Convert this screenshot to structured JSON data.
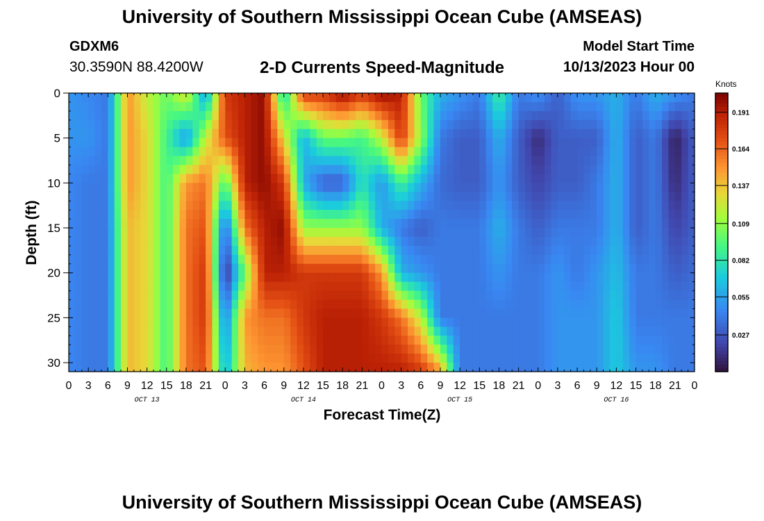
{
  "header": {
    "title": "University of Southern Mississippi Ocean Cube (AMSEAS)",
    "station_name": "GDXM6",
    "coordinates": "30.3590N  88.4200W",
    "chart_subtitle": "2-D Currents Speed-Magnitude",
    "model_start_label": "Model Start Time",
    "model_start_value": "10/13/2023 Hour 00"
  },
  "footer": {
    "title": "University of Southern Mississippi Ocean Cube (AMSEAS)"
  },
  "chart_data": {
    "type": "heatmap",
    "title": "2-D Currents Speed-Magnitude",
    "xlabel": "Forecast Time(Z)",
    "ylabel": "Depth (ft)",
    "x_range_hours": [
      0,
      96
    ],
    "ylim": [
      0,
      31
    ],
    "y_inverted": true,
    "x_ticks": [
      "0",
      "3",
      "6",
      "9",
      "12",
      "15",
      "18",
      "21",
      "0",
      "3",
      "6",
      "9",
      "12",
      "15",
      "18",
      "21",
      "0",
      "3",
      "6",
      "9",
      "12",
      "15",
      "18",
      "21",
      "0",
      "3",
      "6",
      "9",
      "12",
      "15",
      "18",
      "21",
      "0"
    ],
    "x_tick_hours": [
      0,
      3,
      6,
      9,
      12,
      15,
      18,
      21,
      24,
      27,
      30,
      33,
      36,
      39,
      42,
      45,
      48,
      51,
      54,
      57,
      60,
      63,
      66,
      69,
      72,
      75,
      78,
      81,
      84,
      87,
      90,
      93,
      96
    ],
    "day_labels": [
      {
        "hour": 12,
        "label": "OCT 13"
      },
      {
        "hour": 36,
        "label": "OCT 14"
      },
      {
        "hour": 60,
        "label": "OCT 15"
      },
      {
        "hour": 84,
        "label": "OCT 16"
      }
    ],
    "y_ticks": [
      "0",
      "5",
      "10",
      "15",
      "20",
      "25",
      "30"
    ],
    "y_tick_values": [
      0,
      5,
      10,
      15,
      20,
      25,
      30
    ],
    "colorbar": {
      "unit": "Knots",
      "range": [
        0.0,
        0.205
      ],
      "ticks": [
        "0.191",
        "0.164",
        "0.137",
        "0.109",
        "0.082",
        "0.055",
        "0.027"
      ],
      "tick_values": [
        0.191,
        0.164,
        0.137,
        0.109,
        0.082,
        0.055,
        0.027
      ]
    },
    "grid_hours": [
      0,
      3,
      6,
      9,
      12,
      15,
      18,
      21,
      24,
      27,
      30,
      33,
      36,
      39,
      42,
      45,
      48,
      51,
      54,
      57,
      60,
      63,
      66,
      69,
      72,
      75,
      78,
      81,
      84,
      87,
      90,
      93,
      96
    ],
    "grid_depths": [
      0,
      5,
      10,
      15,
      20,
      25,
      31
    ],
    "values": [
      [
        0.05,
        0.045,
        0.04,
        0.15,
        0.12,
        0.1,
        0.13,
        0.05,
        0.18,
        0.19,
        0.2,
        0.07,
        0.18,
        0.18,
        0.2,
        0.18,
        0.2,
        0.19,
        0.1,
        0.06,
        0.05,
        0.04,
        0.09,
        0.04,
        0.05,
        0.03,
        0.05,
        0.05,
        0.06,
        0.04,
        0.06,
        0.05,
        0.04
      ],
      [
        0.05,
        0.05,
        0.04,
        0.15,
        0.13,
        0.09,
        0.05,
        0.12,
        0.17,
        0.19,
        0.2,
        0.13,
        0.06,
        0.1,
        0.1,
        0.09,
        0.12,
        0.18,
        0.11,
        0.04,
        0.03,
        0.03,
        0.06,
        0.03,
        0.01,
        0.03,
        0.03,
        0.03,
        0.06,
        0.03,
        0.04,
        0.005,
        0.03
      ],
      [
        0.045,
        0.04,
        0.04,
        0.15,
        0.13,
        0.09,
        0.15,
        0.16,
        0.09,
        0.19,
        0.2,
        0.18,
        0.06,
        0.03,
        0.03,
        0.08,
        0.05,
        0.09,
        0.06,
        0.035,
        0.03,
        0.03,
        0.05,
        0.03,
        0.02,
        0.03,
        0.03,
        0.04,
        0.06,
        0.03,
        0.04,
        0.01,
        0.03
      ],
      [
        0.045,
        0.04,
        0.04,
        0.14,
        0.13,
        0.09,
        0.16,
        0.17,
        0.03,
        0.16,
        0.19,
        0.2,
        0.11,
        0.11,
        0.11,
        0.11,
        0.06,
        0.04,
        0.03,
        0.04,
        0.04,
        0.04,
        0.06,
        0.04,
        0.03,
        0.04,
        0.04,
        0.04,
        0.06,
        0.03,
        0.04,
        0.02,
        0.03
      ],
      [
        0.045,
        0.04,
        0.04,
        0.14,
        0.13,
        0.09,
        0.16,
        0.18,
        0.01,
        0.1,
        0.19,
        0.19,
        0.18,
        0.18,
        0.18,
        0.18,
        0.15,
        0.06,
        0.05,
        0.04,
        0.04,
        0.04,
        0.05,
        0.04,
        0.04,
        0.05,
        0.04,
        0.05,
        0.065,
        0.04,
        0.04,
        0.03,
        0.035
      ],
      [
        0.045,
        0.04,
        0.04,
        0.14,
        0.13,
        0.09,
        0.16,
        0.18,
        0.04,
        0.15,
        0.16,
        0.16,
        0.18,
        0.19,
        0.19,
        0.19,
        0.18,
        0.16,
        0.12,
        0.04,
        0.04,
        0.04,
        0.04,
        0.04,
        0.04,
        0.05,
        0.05,
        0.05,
        0.07,
        0.04,
        0.04,
        0.04,
        0.04
      ],
      [
        0.045,
        0.04,
        0.04,
        0.14,
        0.13,
        0.09,
        0.16,
        0.17,
        0.06,
        0.14,
        0.15,
        0.15,
        0.17,
        0.19,
        0.19,
        0.19,
        0.19,
        0.19,
        0.18,
        0.15,
        0.04,
        0.04,
        0.04,
        0.04,
        0.04,
        0.05,
        0.05,
        0.05,
        0.07,
        0.05,
        0.05,
        0.04,
        0.04
      ]
    ]
  }
}
